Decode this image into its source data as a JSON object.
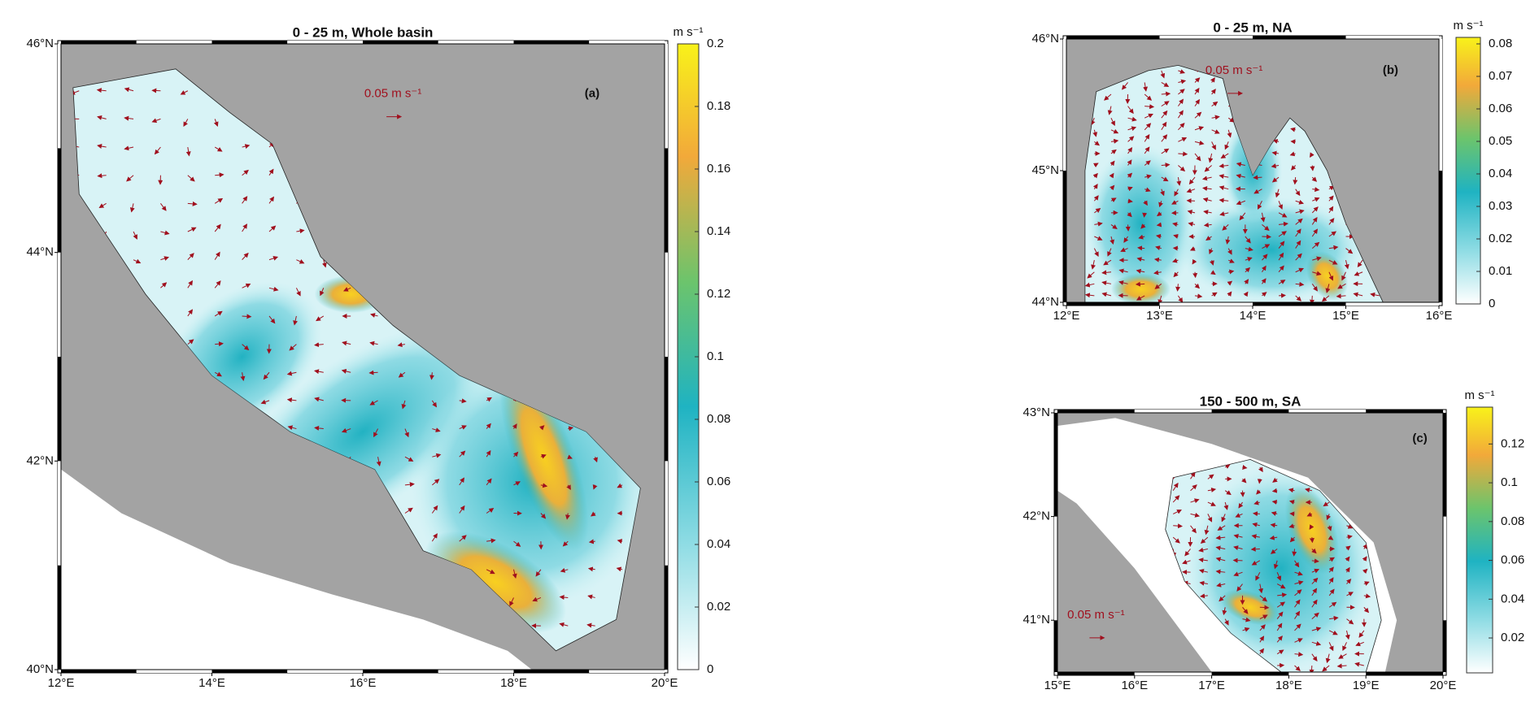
{
  "panels": [
    {
      "title": "0 - 25 m, Whole basin",
      "panel_label": "(a)",
      "scale_label": "0.05 m s⁻¹",
      "colorbar": {
        "unit": "m s⁻¹",
        "range": [
          0,
          0.2
        ],
        "ticks": [
          0,
          0.02,
          0.04,
          0.06,
          0.08,
          0.1,
          0.12,
          0.14,
          0.16,
          0.18,
          0.2
        ]
      },
      "lon": {
        "range": [
          12,
          20
        ],
        "ticks": [
          {
            "value": 12,
            "label": "12°E"
          },
          {
            "value": 14,
            "label": "14°E"
          },
          {
            "value": 16,
            "label": "16°E"
          },
          {
            "value": 18,
            "label": "18°E"
          },
          {
            "value": 20,
            "label": "20°E"
          }
        ]
      },
      "lat": {
        "range": [
          40,
          46
        ],
        "ticks": [
          {
            "value": 40,
            "label": "40°N"
          },
          {
            "value": 42,
            "label": "42°N"
          },
          {
            "value": 44,
            "label": "44°N"
          },
          {
            "value": 46,
            "label": "46°N"
          }
        ]
      }
    },
    {
      "title": "0 - 25 m, NA",
      "panel_label": "(b)",
      "scale_label": "0.05 m s⁻¹",
      "colorbar": {
        "unit": "m s⁻¹",
        "range": [
          0,
          0.082
        ],
        "ticks": [
          0,
          0.01,
          0.02,
          0.03,
          0.04,
          0.05,
          0.06,
          0.07,
          0.08
        ]
      },
      "lon": {
        "range": [
          12,
          16
        ],
        "ticks": [
          {
            "value": 12,
            "label": "12°E"
          },
          {
            "value": 13,
            "label": "13°E"
          },
          {
            "value": 14,
            "label": "14°E"
          },
          {
            "value": 15,
            "label": "15°E"
          },
          {
            "value": 16,
            "label": "16°E"
          }
        ]
      },
      "lat": {
        "range": [
          44,
          46
        ],
        "ticks": [
          {
            "value": 44,
            "label": "44°N"
          },
          {
            "value": 45,
            "label": "45°N"
          },
          {
            "value": 46,
            "label": "46°N"
          }
        ]
      }
    },
    {
      "title": "150 - 500 m, SA",
      "panel_label": "(c)",
      "scale_label": "0.05 m s⁻¹",
      "colorbar": {
        "unit": "m s⁻¹",
        "range": [
          0.002,
          0.139
        ],
        "ticks": [
          0.02,
          0.04,
          0.06,
          0.08,
          0.1,
          0.12
        ]
      },
      "lon": {
        "range": [
          15,
          20
        ],
        "ticks": [
          {
            "value": 15,
            "label": "15°E"
          },
          {
            "value": 16,
            "label": "16°E"
          },
          {
            "value": 17,
            "label": "17°E"
          },
          {
            "value": 18,
            "label": "18°E"
          },
          {
            "value": 19,
            "label": "19°E"
          },
          {
            "value": 20,
            "label": "20°E"
          }
        ]
      },
      "lat": {
        "range": [
          40.5,
          43
        ],
        "ticks": [
          {
            "value": 41,
            "label": "41°N"
          },
          {
            "value": 42,
            "label": "42°N"
          },
          {
            "value": 43,
            "label": "43°N"
          }
        ]
      }
    }
  ]
}
